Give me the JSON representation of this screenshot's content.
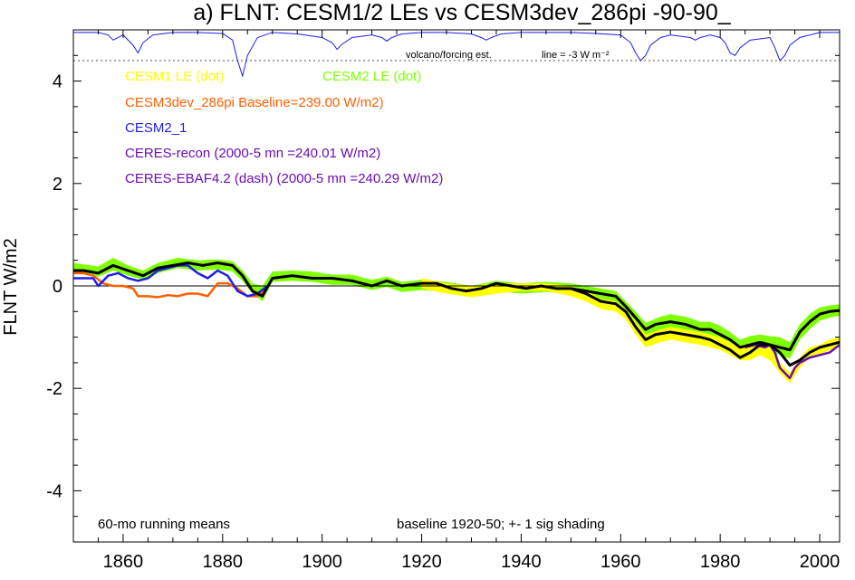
{
  "chart_data": {
    "type": "line",
    "title": "a) FLNT: CESM1/2 LEs vs CESM3dev_286pi -90-90_",
    "xlabel": "",
    "ylabel": "FLNT W/m2",
    "xlim": [
      1850,
      2004
    ],
    "ylim": [
      -5,
      5
    ],
    "x_ticks": [
      1860,
      1880,
      1900,
      1920,
      1940,
      1960,
      1980,
      2000
    ],
    "y_ticks": [
      4,
      2,
      0,
      -2,
      -4
    ],
    "grid": false,
    "legend": {
      "placement": "top-left",
      "entries": [
        {
          "label": "CESM1 LE (dot)",
          "color": "#ffff00"
        },
        {
          "label": "CESM2 LE (dot)",
          "color": "#7fff00"
        },
        {
          "label": "CESM3dev_286pi Baseline=239.00 W/m2)",
          "color": "#ff5f00"
        },
        {
          "label": "CESM2_1",
          "color": "#1e1ee6"
        },
        {
          "label": "CERES-recon (2000-5 mn =240.01 W/m2)",
          "color": "#6a0db5"
        },
        {
          "label": "CERES-EBAF4.2 (dash) (2000-5 mn =240.29 W/m2)",
          "color": "#6a0db5"
        }
      ]
    },
    "annotations": {
      "volcano": "volcano/forcing est.",
      "line_note": "line = -3 W m⁻²",
      "running_means": "60-mo running means",
      "baseline": "baseline 1920-50; +- 1 sig shading"
    },
    "volcano_reference_y": 4.4,
    "series": [
      {
        "name": "CESM2 LE (dot)",
        "role": "band",
        "color": "#7fff00",
        "x": [
          1850,
          1855,
          1858,
          1861,
          1864,
          1867,
          1871,
          1875,
          1879,
          1882,
          1884,
          1886,
          1888,
          1890,
          1894,
          1898,
          1902,
          1906,
          1910,
          1913,
          1916,
          1920,
          1925,
          1930,
          1935,
          1940,
          1945,
          1950,
          1953,
          1956,
          1959,
          1961,
          1963,
          1965,
          1968,
          1970,
          1973,
          1976,
          1978,
          1980,
          1982,
          1984,
          1986,
          1988,
          1990,
          1992,
          1994,
          1996,
          1998,
          2000,
          2002,
          2004
        ],
        "upper": [
          0.45,
          0.38,
          0.55,
          0.4,
          0.3,
          0.45,
          0.55,
          0.5,
          0.52,
          0.48,
          0.3,
          0.05,
          0.0,
          0.28,
          0.3,
          0.28,
          0.22,
          0.22,
          0.12,
          0.18,
          0.08,
          0.12,
          0.08,
          0.0,
          0.1,
          0.05,
          0.08,
          0.05,
          0.0,
          -0.05,
          -0.1,
          -0.3,
          -0.5,
          -0.72,
          -0.6,
          -0.55,
          -0.6,
          -0.7,
          -0.7,
          -0.78,
          -0.9,
          -1.05,
          -0.98,
          -0.95,
          -0.98,
          -1.0,
          -1.1,
          -0.75,
          -0.55,
          -0.42,
          -0.38,
          -0.36
        ],
        "lower": [
          0.25,
          0.18,
          0.3,
          0.2,
          0.12,
          0.25,
          0.35,
          0.3,
          0.32,
          0.28,
          0.1,
          -0.15,
          -0.3,
          0.08,
          0.1,
          0.08,
          0.02,
          0.02,
          -0.08,
          -0.02,
          -0.12,
          -0.08,
          -0.12,
          -0.2,
          -0.1,
          -0.15,
          -0.12,
          -0.15,
          -0.2,
          -0.25,
          -0.3,
          -0.5,
          -0.75,
          -1.0,
          -0.88,
          -0.82,
          -0.88,
          -0.98,
          -1.0,
          -1.08,
          -1.2,
          -1.35,
          -1.3,
          -1.25,
          -1.3,
          -1.35,
          -1.42,
          -1.05,
          -0.85,
          -0.68,
          -0.62,
          -0.58
        ]
      },
      {
        "name": "CESM1 LE (dot)",
        "role": "band",
        "color": "#ffff00",
        "x": [
          1920,
          1925,
          1930,
          1935,
          1940,
          1945,
          1950,
          1953,
          1956,
          1959,
          1961,
          1963,
          1965,
          1968,
          1970,
          1973,
          1976,
          1978,
          1980,
          1982,
          1984,
          1986,
          1988,
          1990,
          1992,
          1994,
          1996,
          1998,
          2000,
          2002,
          2004
        ],
        "upper": [
          0.15,
          0.05,
          0.0,
          0.05,
          0.05,
          0.05,
          0.0,
          -0.1,
          -0.25,
          -0.3,
          -0.45,
          -0.7,
          -0.95,
          -0.85,
          -0.8,
          -0.85,
          -0.9,
          -0.95,
          -1.0,
          -1.1,
          -1.2,
          -1.2,
          -1.1,
          -1.2,
          -1.5,
          -1.7,
          -1.4,
          -1.2,
          -1.15,
          -1.05,
          -1.0
        ],
        "lower": [
          -0.05,
          -0.15,
          -0.22,
          -0.15,
          -0.1,
          -0.1,
          -0.2,
          -0.3,
          -0.45,
          -0.5,
          -0.65,
          -0.95,
          -1.2,
          -1.1,
          -1.05,
          -1.1,
          -1.15,
          -1.2,
          -1.25,
          -1.35,
          -1.45,
          -1.45,
          -1.35,
          -1.45,
          -1.7,
          -1.9,
          -1.6,
          -1.4,
          -1.35,
          -1.25,
          -1.2
        ]
      },
      {
        "name": "CESM3dev_286pi Baseline=239.00 W/m2)",
        "color": "#ff5f00",
        "width": 2.5,
        "x": [
          1850,
          1852,
          1854,
          1856,
          1858,
          1860,
          1862,
          1863,
          1865,
          1867,
          1869,
          1871,
          1873,
          1875,
          1877,
          1879,
          1881,
          1883,
          1885,
          1887,
          1889
        ],
        "y": [
          0.25,
          0.25,
          0.2,
          0.05,
          0.0,
          0.0,
          -0.05,
          -0.2,
          -0.2,
          -0.22,
          -0.18,
          -0.2,
          -0.15,
          -0.15,
          -0.2,
          0.05,
          0.05,
          -0.05,
          -0.2,
          -0.2,
          -0.05
        ]
      },
      {
        "name": "CESM2_1",
        "color": "#1e1ee6",
        "width": 2.5,
        "x": [
          1850,
          1852,
          1854,
          1855,
          1857,
          1859,
          1861,
          1863,
          1865,
          1867,
          1869,
          1871,
          1873,
          1875,
          1877,
          1879,
          1881,
          1883,
          1885,
          1887,
          1889
        ],
        "y": [
          0.15,
          0.15,
          0.15,
          0.0,
          0.2,
          0.25,
          0.15,
          0.1,
          0.15,
          0.3,
          0.35,
          0.4,
          0.4,
          0.25,
          0.15,
          0.3,
          0.2,
          -0.1,
          -0.2,
          -0.15,
          0.0
        ]
      },
      {
        "name": "CERES-recon (2000-5 mn =240.01 W/m2)",
        "color": "#6a0db5",
        "width": 2.5,
        "x": [
          1985,
          1987,
          1989,
          1990,
          1991,
          1992,
          1993,
          1994,
          1995,
          1996,
          1998,
          2000,
          2002,
          2004
        ],
        "y": [
          -1.2,
          -1.15,
          -1.2,
          -1.15,
          -1.3,
          -1.6,
          -1.7,
          -1.8,
          -1.6,
          -1.5,
          -1.4,
          -1.35,
          -1.3,
          -1.15
        ]
      },
      {
        "name": "CESM ensemble mean",
        "color": "#000000",
        "width": 3,
        "x": [
          1850,
          1852,
          1855,
          1858,
          1861,
          1864,
          1867,
          1870,
          1873,
          1876,
          1879,
          1882,
          1884,
          1886,
          1888,
          1890,
          1894,
          1898,
          1902,
          1906,
          1910,
          1913,
          1916,
          1920,
          1923,
          1926,
          1929,
          1932,
          1935,
          1938,
          1941,
          1944,
          1947,
          1950,
          1953,
          1956,
          1959,
          1961,
          1963,
          1965,
          1967,
          1970,
          1973,
          1976,
          1978,
          1980,
          1982,
          1984,
          1986,
          1988,
          1990,
          1992,
          1994,
          1996,
          1998,
          2000,
          2002,
          2004
        ],
        "y": [
          0.3,
          0.3,
          0.25,
          0.4,
          0.3,
          0.2,
          0.35,
          0.4,
          0.45,
          0.4,
          0.45,
          0.4,
          0.2,
          -0.1,
          -0.2,
          0.15,
          0.2,
          0.15,
          0.15,
          0.1,
          0.0,
          0.1,
          0.0,
          0.05,
          0.05,
          -0.05,
          -0.1,
          -0.05,
          0.05,
          0.0,
          -0.05,
          0.0,
          -0.05,
          -0.05,
          -0.15,
          -0.3,
          -0.35,
          -0.5,
          -0.8,
          -1.05,
          -0.95,
          -0.9,
          -0.95,
          -1.0,
          -1.05,
          -1.15,
          -1.25,
          -1.4,
          -1.3,
          -1.15,
          -1.15,
          -1.3,
          -1.55,
          -1.45,
          -1.3,
          -1.2,
          -1.15,
          -1.1
        ]
      },
      {
        "name": "CESM2 LE ensemble mean",
        "color": "#000000",
        "width": 3,
        "x": [
          1950,
          1953,
          1956,
          1959,
          1961,
          1963,
          1965,
          1967,
          1970,
          1973,
          1976,
          1978,
          1980,
          1982,
          1984,
          1986,
          1988,
          1990,
          1992,
          1994,
          1996,
          1998,
          2000,
          2002,
          2004
        ],
        "y": [
          -0.05,
          -0.1,
          -0.15,
          -0.2,
          -0.4,
          -0.62,
          -0.85,
          -0.75,
          -0.7,
          -0.75,
          -0.85,
          -0.85,
          -0.95,
          -1.05,
          -1.2,
          -1.15,
          -1.1,
          -1.15,
          -1.2,
          -1.25,
          -0.9,
          -0.7,
          -0.55,
          -0.5,
          -0.48
        ]
      }
    ],
    "volcano_series": {
      "name": "volcano/forcing est.",
      "color": "#1e1ee6",
      "x": [
        1850,
        1855,
        1857,
        1858,
        1859,
        1860,
        1862,
        1863,
        1864,
        1866,
        1870,
        1875,
        1880,
        1882,
        1883,
        1884,
        1885,
        1887,
        1890,
        1895,
        1900,
        1902,
        1903,
        1904,
        1906,
        1910,
        1912,
        1913,
        1914,
        1916,
        1920,
        1925,
        1930,
        1932,
        1933,
        1934,
        1936,
        1940,
        1945,
        1950,
        1955,
        1960,
        1962,
        1963,
        1964,
        1965,
        1966,
        1968,
        1970,
        1974,
        1975,
        1976,
        1978,
        1980,
        1981,
        1982,
        1983,
        1984,
        1986,
        1990,
        1991,
        1992,
        1993,
        1994,
        1996,
        2000,
        2004
      ],
      "y": [
        4.95,
        4.95,
        4.9,
        4.8,
        4.85,
        4.9,
        4.7,
        4.55,
        4.75,
        4.9,
        4.95,
        4.95,
        4.93,
        4.8,
        4.4,
        4.1,
        4.5,
        4.85,
        4.95,
        4.92,
        4.85,
        4.75,
        4.62,
        4.72,
        4.85,
        4.9,
        4.85,
        4.78,
        4.85,
        4.92,
        4.95,
        4.95,
        4.92,
        4.85,
        4.8,
        4.85,
        4.92,
        4.95,
        4.95,
        4.95,
        4.93,
        4.9,
        4.75,
        4.55,
        4.4,
        4.5,
        4.7,
        4.85,
        4.9,
        4.85,
        4.8,
        4.85,
        4.9,
        4.85,
        4.75,
        4.55,
        4.5,
        4.65,
        4.8,
        4.85,
        4.65,
        4.4,
        4.5,
        4.7,
        4.85,
        4.95,
        4.95
      ]
    }
  }
}
